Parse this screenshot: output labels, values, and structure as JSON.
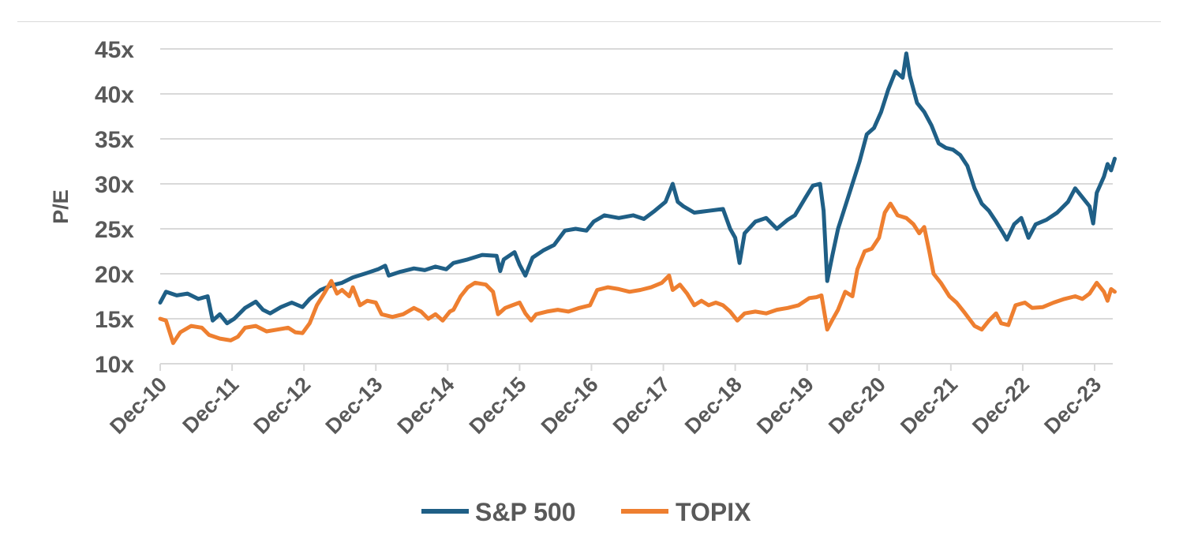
{
  "chart_data": {
    "type": "line",
    "title": "",
    "xlabel": "",
    "ylabel": "P/E",
    "ylim": [
      10,
      45
    ],
    "y_ticks": [
      "10x",
      "15x",
      "20x",
      "25x",
      "30x",
      "35x",
      "40x",
      "45x"
    ],
    "x_ticks": [
      "Dec-10",
      "Dec-11",
      "Dec-12",
      "Dec-13",
      "Dec-14",
      "Dec-15",
      "Dec-16",
      "Dec-17",
      "Dec-18",
      "Dec-19",
      "Dec-20",
      "Dec-21",
      "Dec-22",
      "Dec-23"
    ],
    "x_range": [
      2010.92,
      2024.2
    ],
    "grid": "horizontal",
    "legend_position": "bottom",
    "colors": {
      "S&P 500": "#1f5f86",
      "TOPIX": "#ee7f30",
      "grid": "#d9d9d9",
      "text": "#595959"
    },
    "series": [
      {
        "name": "S&P 500",
        "points": [
          [
            2010.92,
            16.8
          ],
          [
            2011.0,
            18.0
          ],
          [
            2011.15,
            17.6
          ],
          [
            2011.3,
            17.8
          ],
          [
            2011.45,
            17.2
          ],
          [
            2011.58,
            17.5
          ],
          [
            2011.65,
            14.8
          ],
          [
            2011.75,
            15.5
          ],
          [
            2011.85,
            14.5
          ],
          [
            2011.95,
            15.0
          ],
          [
            2012.1,
            16.2
          ],
          [
            2012.25,
            16.9
          ],
          [
            2012.35,
            16.0
          ],
          [
            2012.45,
            15.6
          ],
          [
            2012.6,
            16.3
          ],
          [
            2012.75,
            16.8
          ],
          [
            2012.9,
            16.3
          ],
          [
            2013.0,
            17.2
          ],
          [
            2013.15,
            18.2
          ],
          [
            2013.3,
            18.7
          ],
          [
            2013.45,
            19.0
          ],
          [
            2013.6,
            19.6
          ],
          [
            2013.8,
            20.1
          ],
          [
            2013.95,
            20.5
          ],
          [
            2014.05,
            20.9
          ],
          [
            2014.1,
            19.8
          ],
          [
            2014.25,
            20.2
          ],
          [
            2014.45,
            20.6
          ],
          [
            2014.6,
            20.4
          ],
          [
            2014.75,
            20.8
          ],
          [
            2014.9,
            20.5
          ],
          [
            2015.0,
            21.2
          ],
          [
            2015.2,
            21.6
          ],
          [
            2015.4,
            22.1
          ],
          [
            2015.6,
            22.0
          ],
          [
            2015.65,
            20.3
          ],
          [
            2015.7,
            21.6
          ],
          [
            2015.85,
            22.4
          ],
          [
            2015.92,
            21.0
          ],
          [
            2016.0,
            19.8
          ],
          [
            2016.1,
            21.8
          ],
          [
            2016.25,
            22.6
          ],
          [
            2016.4,
            23.2
          ],
          [
            2016.55,
            24.8
          ],
          [
            2016.7,
            25.0
          ],
          [
            2016.85,
            24.8
          ],
          [
            2016.95,
            25.8
          ],
          [
            2017.1,
            26.5
          ],
          [
            2017.3,
            26.2
          ],
          [
            2017.5,
            26.5
          ],
          [
            2017.65,
            26.1
          ],
          [
            2017.8,
            27.0
          ],
          [
            2017.95,
            28.0
          ],
          [
            2018.05,
            30.0
          ],
          [
            2018.12,
            28.0
          ],
          [
            2018.2,
            27.5
          ],
          [
            2018.35,
            26.8
          ],
          [
            2018.55,
            27.0
          ],
          [
            2018.75,
            27.2
          ],
          [
            2018.85,
            25.0
          ],
          [
            2018.92,
            24.0
          ],
          [
            2018.98,
            21.2
          ],
          [
            2019.05,
            24.5
          ],
          [
            2019.2,
            25.8
          ],
          [
            2019.35,
            26.2
          ],
          [
            2019.5,
            25.0
          ],
          [
            2019.65,
            26.0
          ],
          [
            2019.75,
            26.5
          ],
          [
            2019.9,
            28.5
          ],
          [
            2020.0,
            29.8
          ],
          [
            2020.1,
            30.0
          ],
          [
            2020.15,
            27.0
          ],
          [
            2020.2,
            19.2
          ],
          [
            2020.27,
            22.0
          ],
          [
            2020.35,
            25.0
          ],
          [
            2020.45,
            27.5
          ],
          [
            2020.55,
            30.0
          ],
          [
            2020.65,
            32.5
          ],
          [
            2020.75,
            35.5
          ],
          [
            2020.85,
            36.2
          ],
          [
            2020.95,
            38.0
          ],
          [
            2021.05,
            40.5
          ],
          [
            2021.15,
            42.5
          ],
          [
            2021.25,
            41.8
          ],
          [
            2021.3,
            44.5
          ],
          [
            2021.35,
            42.0
          ],
          [
            2021.45,
            39.0
          ],
          [
            2021.55,
            38.0
          ],
          [
            2021.65,
            36.5
          ],
          [
            2021.75,
            34.5
          ],
          [
            2021.85,
            34.0
          ],
          [
            2021.95,
            33.8
          ],
          [
            2022.05,
            33.2
          ],
          [
            2022.15,
            32.0
          ],
          [
            2022.25,
            29.5
          ],
          [
            2022.35,
            27.8
          ],
          [
            2022.45,
            27.0
          ],
          [
            2022.55,
            25.8
          ],
          [
            2022.65,
            24.5
          ],
          [
            2022.7,
            23.8
          ],
          [
            2022.8,
            25.5
          ],
          [
            2022.9,
            26.2
          ],
          [
            2023.0,
            24.0
          ],
          [
            2023.1,
            25.5
          ],
          [
            2023.25,
            26.0
          ],
          [
            2023.4,
            26.8
          ],
          [
            2023.55,
            28.0
          ],
          [
            2023.65,
            29.5
          ],
          [
            2023.75,
            28.5
          ],
          [
            2023.85,
            27.5
          ],
          [
            2023.9,
            25.6
          ],
          [
            2023.95,
            29.0
          ],
          [
            2024.05,
            30.8
          ],
          [
            2024.1,
            32.2
          ],
          [
            2024.15,
            31.5
          ],
          [
            2024.2,
            32.8
          ]
        ]
      },
      {
        "name": "TOPIX",
        "points": [
          [
            2010.92,
            15.0
          ],
          [
            2011.0,
            14.8
          ],
          [
            2011.1,
            12.3
          ],
          [
            2011.2,
            13.5
          ],
          [
            2011.35,
            14.2
          ],
          [
            2011.5,
            14.0
          ],
          [
            2011.6,
            13.2
          ],
          [
            2011.75,
            12.8
          ],
          [
            2011.9,
            12.6
          ],
          [
            2012.0,
            13.0
          ],
          [
            2012.1,
            14.0
          ],
          [
            2012.25,
            14.2
          ],
          [
            2012.4,
            13.6
          ],
          [
            2012.55,
            13.8
          ],
          [
            2012.7,
            14.0
          ],
          [
            2012.8,
            13.5
          ],
          [
            2012.9,
            13.4
          ],
          [
            2013.0,
            14.5
          ],
          [
            2013.1,
            16.5
          ],
          [
            2013.2,
            17.8
          ],
          [
            2013.3,
            19.2
          ],
          [
            2013.38,
            17.8
          ],
          [
            2013.45,
            18.2
          ],
          [
            2013.55,
            17.5
          ],
          [
            2013.6,
            18.5
          ],
          [
            2013.7,
            16.5
          ],
          [
            2013.8,
            17.0
          ],
          [
            2013.92,
            16.8
          ],
          [
            2014.0,
            15.5
          ],
          [
            2014.15,
            15.2
          ],
          [
            2014.3,
            15.5
          ],
          [
            2014.45,
            16.2
          ],
          [
            2014.55,
            15.8
          ],
          [
            2014.65,
            15.0
          ],
          [
            2014.75,
            15.5
          ],
          [
            2014.85,
            14.8
          ],
          [
            2014.95,
            15.8
          ],
          [
            2015.0,
            16.0
          ],
          [
            2015.1,
            17.5
          ],
          [
            2015.2,
            18.5
          ],
          [
            2015.3,
            19.0
          ],
          [
            2015.45,
            18.8
          ],
          [
            2015.55,
            18.0
          ],
          [
            2015.62,
            15.5
          ],
          [
            2015.72,
            16.2
          ],
          [
            2015.82,
            16.5
          ],
          [
            2015.92,
            16.8
          ],
          [
            2016.0,
            15.6
          ],
          [
            2016.08,
            14.8
          ],
          [
            2016.15,
            15.5
          ],
          [
            2016.3,
            15.8
          ],
          [
            2016.45,
            16.0
          ],
          [
            2016.6,
            15.8
          ],
          [
            2016.75,
            16.2
          ],
          [
            2016.9,
            16.5
          ],
          [
            2017.0,
            18.2
          ],
          [
            2017.15,
            18.5
          ],
          [
            2017.3,
            18.3
          ],
          [
            2017.45,
            18.0
          ],
          [
            2017.6,
            18.2
          ],
          [
            2017.75,
            18.5
          ],
          [
            2017.9,
            19.0
          ],
          [
            2018.0,
            19.8
          ],
          [
            2018.05,
            18.2
          ],
          [
            2018.15,
            18.8
          ],
          [
            2018.25,
            17.8
          ],
          [
            2018.35,
            16.5
          ],
          [
            2018.45,
            17.0
          ],
          [
            2018.55,
            16.5
          ],
          [
            2018.65,
            16.8
          ],
          [
            2018.75,
            16.5
          ],
          [
            2018.85,
            15.8
          ],
          [
            2018.95,
            14.8
          ],
          [
            2019.05,
            15.6
          ],
          [
            2019.2,
            15.8
          ],
          [
            2019.35,
            15.6
          ],
          [
            2019.5,
            16.0
          ],
          [
            2019.65,
            16.2
          ],
          [
            2019.8,
            16.5
          ],
          [
            2019.95,
            17.3
          ],
          [
            2020.05,
            17.4
          ],
          [
            2020.12,
            17.6
          ],
          [
            2020.2,
            13.8
          ],
          [
            2020.28,
            15.0
          ],
          [
            2020.35,
            16.0
          ],
          [
            2020.45,
            18.0
          ],
          [
            2020.55,
            17.5
          ],
          [
            2020.62,
            20.5
          ],
          [
            2020.72,
            22.5
          ],
          [
            2020.82,
            22.8
          ],
          [
            2020.92,
            24.0
          ],
          [
            2021.0,
            26.8
          ],
          [
            2021.08,
            27.8
          ],
          [
            2021.18,
            26.5
          ],
          [
            2021.3,
            26.2
          ],
          [
            2021.4,
            25.5
          ],
          [
            2021.48,
            24.5
          ],
          [
            2021.55,
            25.2
          ],
          [
            2021.62,
            22.5
          ],
          [
            2021.68,
            20.0
          ],
          [
            2021.78,
            19.0
          ],
          [
            2021.9,
            17.5
          ],
          [
            2022.0,
            16.8
          ],
          [
            2022.1,
            15.8
          ],
          [
            2022.25,
            14.2
          ],
          [
            2022.35,
            13.8
          ],
          [
            2022.45,
            14.8
          ],
          [
            2022.55,
            15.6
          ],
          [
            2022.62,
            14.5
          ],
          [
            2022.72,
            14.3
          ],
          [
            2022.82,
            16.5
          ],
          [
            2022.95,
            16.8
          ],
          [
            2023.05,
            16.2
          ],
          [
            2023.2,
            16.3
          ],
          [
            2023.35,
            16.8
          ],
          [
            2023.5,
            17.2
          ],
          [
            2023.65,
            17.5
          ],
          [
            2023.75,
            17.2
          ],
          [
            2023.85,
            17.8
          ],
          [
            2023.95,
            19.0
          ],
          [
            2024.05,
            18.0
          ],
          [
            2024.1,
            17.0
          ],
          [
            2024.15,
            18.3
          ],
          [
            2024.2,
            18.0
          ]
        ]
      }
    ]
  }
}
